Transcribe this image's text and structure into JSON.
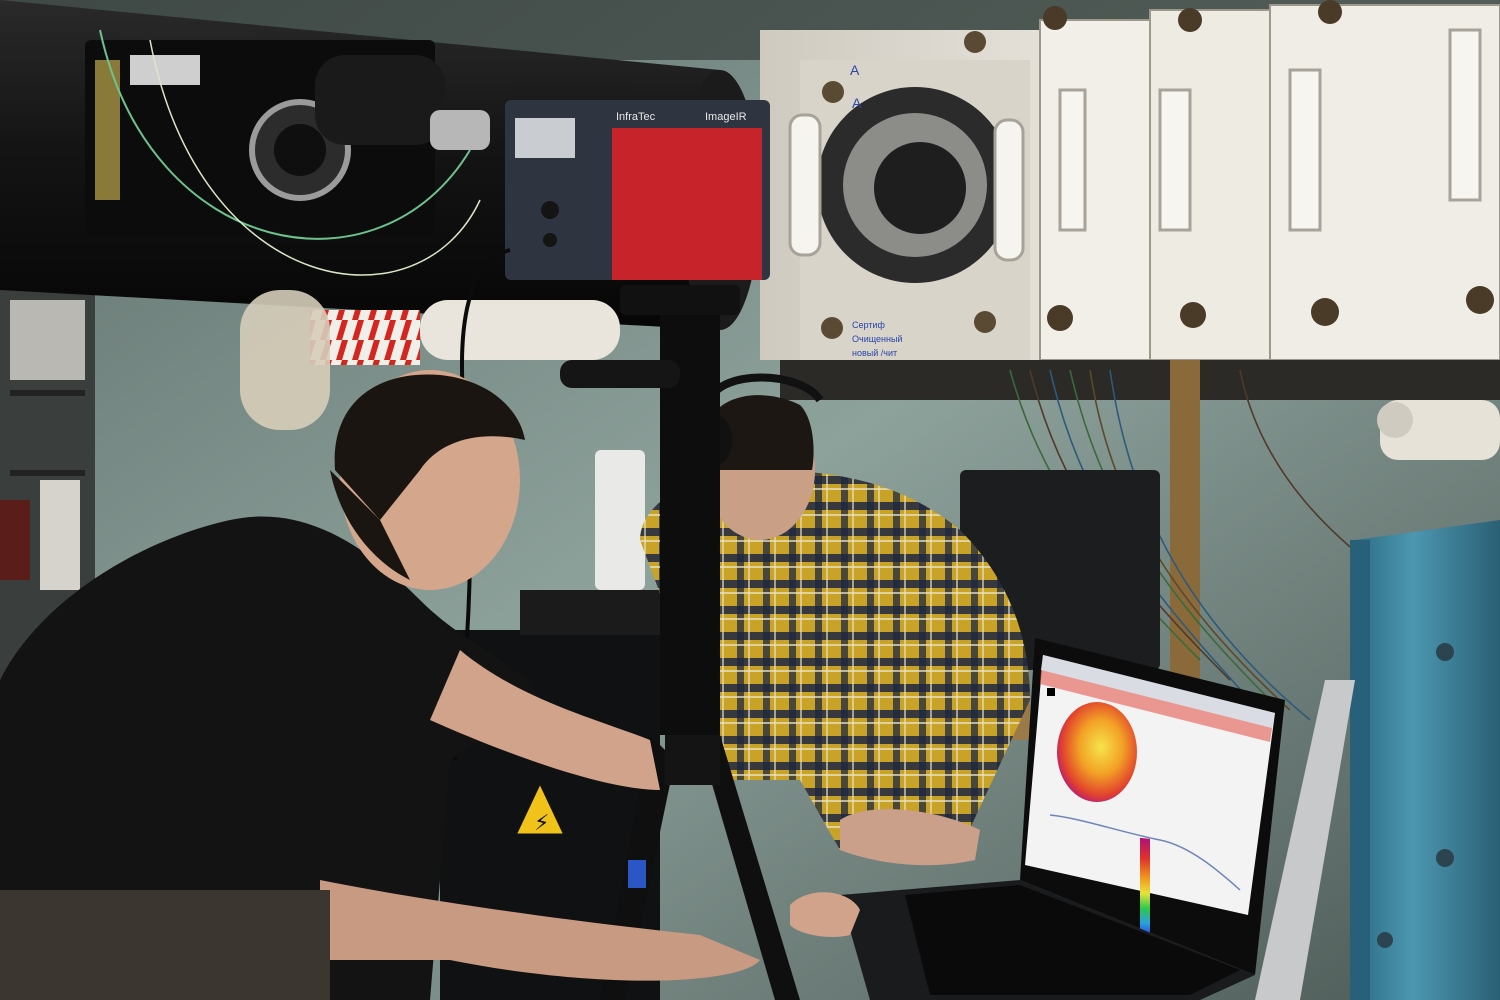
{
  "photo": {
    "camera_brand_left": "InfraTec",
    "camera_brand_right": "ImageIR",
    "hazard_symbol": "high-voltage-warning-icon",
    "tunnel_label_top": "A",
    "tunnel_label_side": "A",
    "tunnel_note_line1": "Сертиф",
    "tunnel_note_line2": "Очищенный",
    "tunnel_note_line3": "новый  /чит"
  },
  "screen": {
    "app": "thermal imaging software",
    "colormap": [
      "#2b2bd9",
      "#2aa0e0",
      "#2ec94a",
      "#e8e23a",
      "#f29a1e",
      "#e0312a",
      "#b01277"
    ]
  },
  "colors": {
    "camera_red": "#c6232b",
    "camera_body": "#2f3540",
    "tunnel_white": "#e8e4dc",
    "tunnel_black": "#161616",
    "wall": "#8fa39d",
    "blue_frame": "#3f8aa3",
    "shirt_plaid_yellow": "#c8a327",
    "shirt_plaid_navy": "#1f2740"
  }
}
